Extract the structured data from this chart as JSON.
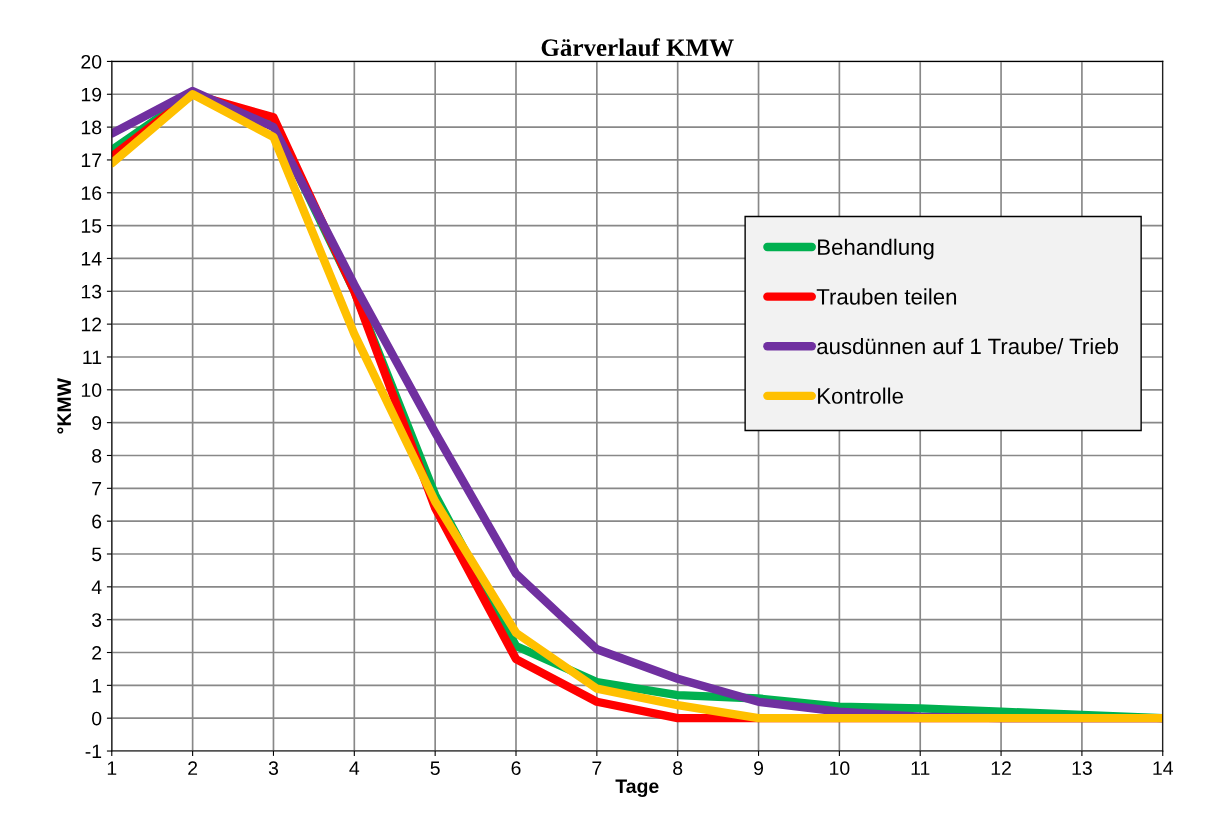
{
  "chart_data": {
    "type": "line",
    "title": "Gärverlauf KMW",
    "xlabel": "Tage",
    "ylabel": "°KMW",
    "x": [
      1,
      2,
      3,
      4,
      5,
      6,
      7,
      8,
      9,
      10,
      11,
      12,
      13,
      14
    ],
    "series": [
      {
        "name": "Behandlung",
        "color": "#00b050",
        "values": [
          17.3,
          19.0,
          18.1,
          13.0,
          6.8,
          2.2,
          1.1,
          0.7,
          0.6,
          0.35,
          0.3,
          0.2,
          0.1,
          0.0
        ]
      },
      {
        "name": "Trauben teilen",
        "color": "#ff0000",
        "values": [
          17.1,
          19.0,
          18.3,
          13.0,
          6.4,
          1.8,
          0.5,
          0.0,
          0.0,
          0.0,
          0.0,
          0.0,
          0.0,
          0.0
        ]
      },
      {
        "name": "ausdünnen auf 1 Traube/ Trieb",
        "color": "#7030a0",
        "values": [
          17.8,
          19.1,
          18.0,
          13.2,
          8.7,
          4.4,
          2.1,
          1.2,
          0.5,
          0.2,
          0.05,
          0.0,
          0.0,
          0.0
        ]
      },
      {
        "name": "Kontrolle",
        "color": "#ffc000",
        "values": [
          16.9,
          19.0,
          17.7,
          11.7,
          6.6,
          2.6,
          0.9,
          0.4,
          0.0,
          0.0,
          0.0,
          0.0,
          0.0,
          0.0
        ]
      }
    ],
    "xlim": [
      1,
      14
    ],
    "xticks": [
      1,
      2,
      3,
      4,
      5,
      6,
      7,
      8,
      9,
      10,
      11,
      12,
      13,
      14
    ],
    "ylim": [
      -1,
      20
    ],
    "yticks": [
      -1,
      0,
      1,
      2,
      3,
      4,
      5,
      6,
      7,
      8,
      9,
      10,
      11,
      12,
      13,
      14,
      15,
      16,
      17,
      18,
      19,
      20
    ],
    "grid": true,
    "legend": "right",
    "marker": "none",
    "line_style": "solid"
  }
}
